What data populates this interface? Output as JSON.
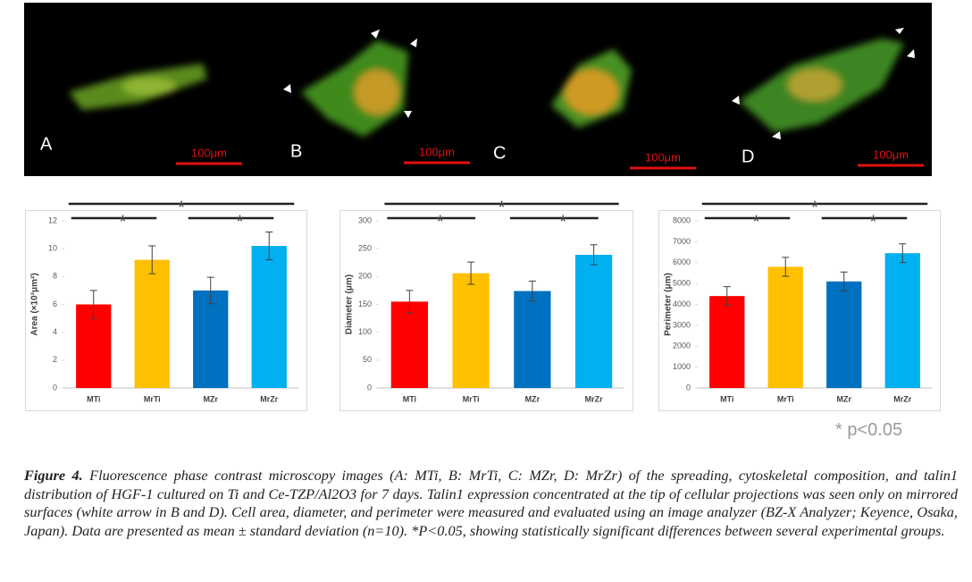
{
  "images": {
    "panels": [
      {
        "label": "A",
        "scale": "100μm"
      },
      {
        "label": "B",
        "scale": "100μm"
      },
      {
        "label": "C",
        "scale": "100μm"
      },
      {
        "label": "D",
        "scale": "100μm"
      }
    ]
  },
  "chart_data": [
    {
      "type": "bar",
      "y_label": "Area (×10³μm²)",
      "categories": [
        "MTi",
        "MrTi",
        "MZr",
        "MrZr"
      ],
      "values": [
        6.0,
        9.2,
        7.0,
        10.2
      ],
      "errors": [
        1.0,
        1.0,
        0.95,
        1.0
      ],
      "colors": [
        "#ff0000",
        "#ffc000",
        "#0070c0",
        "#00b0f0"
      ],
      "ylim": [
        0,
        12
      ],
      "yticks": [
        0,
        2,
        4,
        6,
        8,
        10,
        12
      ],
      "significance": [
        {
          "between": [
            "MTi",
            "MrZr"
          ],
          "label": "*"
        },
        {
          "between": [
            "MTi",
            "MrTi"
          ],
          "label": "*"
        },
        {
          "between": [
            "MZr",
            "MrZr"
          ],
          "label": "*"
        }
      ]
    },
    {
      "type": "bar",
      "y_label": "Diameter (μm)",
      "categories": [
        "MTi",
        "MrTi",
        "MZr",
        "MrZr"
      ],
      "values": [
        155,
        206,
        174,
        239
      ],
      "errors": [
        20,
        20,
        18,
        18
      ],
      "colors": [
        "#ff0000",
        "#ffc000",
        "#0070c0",
        "#00b0f0"
      ],
      "ylim": [
        0,
        300
      ],
      "yticks": [
        0,
        50,
        100,
        150,
        200,
        250,
        300
      ],
      "significance": [
        {
          "between": [
            "MTi",
            "MrZr"
          ],
          "label": "*"
        },
        {
          "between": [
            "MTi",
            "MrTi"
          ],
          "label": "*"
        },
        {
          "between": [
            "MZr",
            "MrZr"
          ],
          "label": "*"
        }
      ]
    },
    {
      "type": "bar",
      "y_label": "Perimeter (μm)",
      "categories": [
        "MTi",
        "MrTi",
        "MZr",
        "MrZr"
      ],
      "values": [
        4400,
        5800,
        5100,
        6450
      ],
      "errors": [
        450,
        450,
        450,
        450
      ],
      "colors": [
        "#ff0000",
        "#ffc000",
        "#0070c0",
        "#00b0f0"
      ],
      "ylim": [
        0,
        8000
      ],
      "yticks": [
        0,
        1000,
        2000,
        3000,
        4000,
        5000,
        6000,
        7000,
        8000
      ],
      "significance": [
        {
          "between": [
            "MTi",
            "MrZr"
          ],
          "label": "*"
        },
        {
          "between": [
            "MTi",
            "MrTi"
          ],
          "label": "*"
        },
        {
          "between": [
            "MZr",
            "MrZr"
          ],
          "label": "*"
        }
      ]
    }
  ],
  "note": "* p<0.05",
  "caption": {
    "label": "Figure 4.",
    "text": " Fluorescence phase contrast microscopy images (A: MTi, B: MrTi, C: MZr, D: MrZr) of the spreading, cytoskeletal composition, and talin1 distribution of HGF-1 cultured on Ti and Ce-TZP/Al2O3 for 7 days. Talin1 expression concentrated at the tip of cellular projections was seen only on mirrored surfaces (white arrow in B and D). Cell area, diameter, and perimeter were measured and evaluated using an image analyzer (BZ-X Analyzer; Keyence, Osaka, Japan). Data are presented as mean ± standard deviation (n=10). *P<0.05, showing statistically significant differences between several experimental groups."
  }
}
